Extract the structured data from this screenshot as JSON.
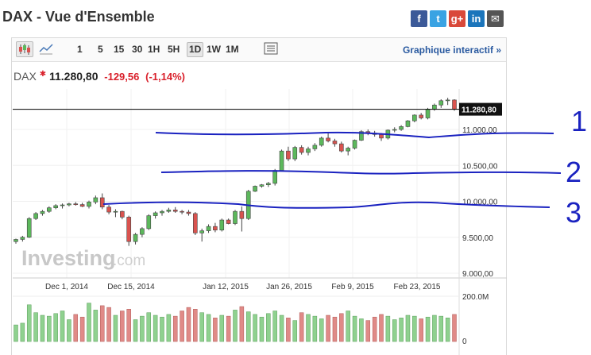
{
  "title": "DAX - Vue d'Ensemble",
  "share_icons": [
    {
      "name": "facebook-icon",
      "glyph": "f",
      "color": "#3b5998"
    },
    {
      "name": "twitter-icon",
      "glyph": "t",
      "color": "#3aa3e3"
    },
    {
      "name": "googleplus-icon",
      "glyph": "g+",
      "color": "#d9493a"
    },
    {
      "name": "linkedin-icon",
      "glyph": "in",
      "color": "#1b75bb"
    },
    {
      "name": "email-icon",
      "glyph": "✉",
      "color": "#555555"
    }
  ],
  "toolbar": {
    "ranges": [
      "1",
      "5",
      "15",
      "30",
      "1H",
      "5H",
      "1D",
      "1W",
      "1M"
    ],
    "selected_range": "1D",
    "interactive_label": "Graphique interactif »"
  },
  "quote": {
    "symbol": "DAX",
    "last": "11.280,80",
    "change": "-129,56",
    "change_pct": "(-1,14%)"
  },
  "chart_data": {
    "type": "candlestick",
    "x_labels": [
      "Dec 1, 2014",
      "Dec 15, 2014",
      "Jan 12, 2015",
      "Jan 26, 2015",
      "Feb 9, 2015",
      "Feb 23, 2015"
    ],
    "y_ticks": [
      "11.000,00",
      "10.500,00",
      "10.000,00",
      "9.500,00",
      "9.000,00"
    ],
    "ylim": [
      9000,
      11500
    ],
    "last_price_label": "11.280,80",
    "last_price": 11280.8,
    "volume_ticks": [
      "200.0M",
      "0"
    ],
    "watermark": "Investing.com",
    "annotations": [
      "1",
      "2",
      "3"
    ],
    "candles": [
      [
        9440,
        9480,
        9410,
        9470
      ],
      [
        9470,
        9520,
        9440,
        9500
      ],
      [
        9500,
        9780,
        9490,
        9760
      ],
      [
        9760,
        9850,
        9740,
        9830
      ],
      [
        9830,
        9880,
        9800,
        9860
      ],
      [
        9860,
        9930,
        9840,
        9910
      ],
      [
        9910,
        9960,
        9890,
        9940
      ],
      [
        9940,
        9970,
        9900,
        9950
      ],
      [
        9950,
        9980,
        9930,
        9965
      ],
      [
        9965,
        9990,
        9940,
        9955
      ],
      [
        9955,
        9980,
        9920,
        9930
      ],
      [
        9930,
        10010,
        9900,
        9990
      ],
      [
        9990,
        10080,
        9960,
        10050
      ],
      [
        10050,
        10110,
        9890,
        9920
      ],
      [
        9920,
        9950,
        9820,
        9850
      ],
      [
        9850,
        9890,
        9780,
        9860
      ],
      [
        9860,
        9870,
        9750,
        9780
      ],
      [
        9780,
        9800,
        9380,
        9440
      ],
      [
        9440,
        9560,
        9400,
        9540
      ],
      [
        9540,
        9640,
        9500,
        9620
      ],
      [
        9620,
        9820,
        9600,
        9800
      ],
      [
        9800,
        9860,
        9760,
        9840
      ],
      [
        9840,
        9880,
        9800,
        9860
      ],
      [
        9860,
        9910,
        9840,
        9880
      ],
      [
        9880,
        9920,
        9840,
        9860
      ],
      [
        9860,
        9880,
        9820,
        9850
      ],
      [
        9850,
        9880,
        9800,
        9830
      ],
      [
        9830,
        9850,
        9530,
        9560
      ],
      [
        9560,
        9620,
        9440,
        9590
      ],
      [
        9590,
        9680,
        9560,
        9650
      ],
      [
        9650,
        9700,
        9570,
        9600
      ],
      [
        9600,
        9760,
        9580,
        9740
      ],
      [
        9740,
        9760,
        9680,
        9690
      ],
      [
        9690,
        9880,
        9670,
        9860
      ],
      [
        9860,
        9930,
        9580,
        9760
      ],
      [
        9760,
        10160,
        9740,
        10140
      ],
      [
        10140,
        10220,
        10130,
        10210
      ],
      [
        10210,
        10240,
        10190,
        10230
      ],
      [
        10230,
        10270,
        10200,
        10250
      ],
      [
        10250,
        10450,
        10220,
        10430
      ],
      [
        10430,
        10720,
        10420,
        10700
      ],
      [
        10700,
        10760,
        10560,
        10590
      ],
      [
        10590,
        10770,
        10560,
        10750
      ],
      [
        10750,
        10780,
        10650,
        10680
      ],
      [
        10680,
        10760,
        10640,
        10730
      ],
      [
        10730,
        10810,
        10700,
        10780
      ],
      [
        10780,
        10900,
        10760,
        10880
      ],
      [
        10880,
        10950,
        10820,
        10840
      ],
      [
        10840,
        10870,
        10760,
        10800
      ],
      [
        10800,
        10830,
        10680,
        10700
      ],
      [
        10700,
        10760,
        10640,
        10740
      ],
      [
        10740,
        10860,
        10720,
        10850
      ],
      [
        10850,
        10990,
        10840,
        10970
      ],
      [
        10970,
        11000,
        10920,
        10950
      ],
      [
        10950,
        10980,
        10900,
        10930
      ],
      [
        10930,
        10950,
        10840,
        10880
      ],
      [
        10880,
        11000,
        10860,
        10990
      ],
      [
        10990,
        11030,
        10960,
        11000
      ],
      [
        11000,
        11060,
        10980,
        11040
      ],
      [
        11040,
        11130,
        11030,
        11120
      ],
      [
        11120,
        11210,
        11100,
        11200
      ],
      [
        11200,
        11230,
        11140,
        11160
      ],
      [
        11160,
        11300,
        11140,
        11280
      ],
      [
        11280,
        11360,
        11260,
        11340
      ],
      [
        11340,
        11420,
        11300,
        11400
      ],
      [
        11400,
        11440,
        11340,
        11410
      ],
      [
        11410,
        11420,
        11260,
        11280
      ]
    ],
    "volumes": [
      38,
      42,
      84,
      66,
      60,
      58,
      64,
      70,
      50,
      62,
      56,
      88,
      72,
      82,
      78,
      60,
      70,
      74,
      50,
      58,
      66,
      60,
      56,
      62,
      58,
      70,
      78,
      74,
      66,
      62,
      54,
      60,
      58,
      72,
      80,
      68,
      62,
      56,
      64,
      70,
      60,
      54,
      48,
      66,
      62,
      58,
      52,
      60,
      56,
      64,
      70,
      58,
      52,
      48,
      56,
      62,
      58,
      50,
      54,
      60,
      58,
      52,
      56,
      60,
      58,
      54,
      62
    ]
  }
}
